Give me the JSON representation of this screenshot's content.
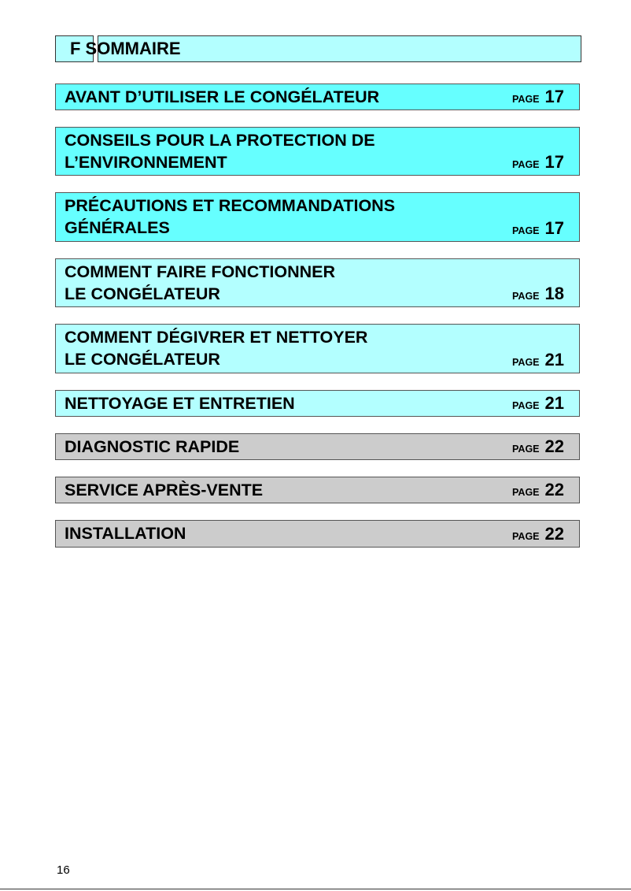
{
  "header": {
    "text": "F SOMMAIRE"
  },
  "colors": {
    "bright": "#66ffff",
    "light": "#b3ffff",
    "gray": "#cccccc"
  },
  "page_label": "PAGE",
  "entries": [
    {
      "lines": [
        "AVANT D’UTILISER LE CONGÉLATEUR"
      ],
      "page": "17",
      "color": "bright"
    },
    {
      "lines": [
        "CONSEILS POUR LA PROTECTION DE",
        "L’ENVIRONNEMENT"
      ],
      "page": "17",
      "color": "bright"
    },
    {
      "lines": [
        "PRÉCAUTIONS ET RECOMMANDATIONS",
        "GÉNÉRALES"
      ],
      "page": "17",
      "color": "bright"
    },
    {
      "lines": [
        "COMMENT FAIRE FONCTIONNER",
        "LE CONGÉLATEUR"
      ],
      "page": "18",
      "color": "light"
    },
    {
      "lines": [
        "COMMENT DÉGIVRER ET NETTOYER",
        "LE CONGÉLATEUR"
      ],
      "page": "21",
      "color": "light"
    },
    {
      "lines": [
        "NETTOYAGE ET ENTRETIEN"
      ],
      "page": "21",
      "color": "light"
    },
    {
      "lines": [
        "DIAGNOSTIC RAPIDE"
      ],
      "page": "22",
      "color": "gray"
    },
    {
      "lines": [
        "SERVICE APRÈS-VENTE"
      ],
      "page": "22",
      "color": "gray"
    },
    {
      "lines": [
        "INSTALLATION"
      ],
      "page": "22",
      "color": "gray"
    }
  ],
  "footer": {
    "page_number": "16"
  }
}
